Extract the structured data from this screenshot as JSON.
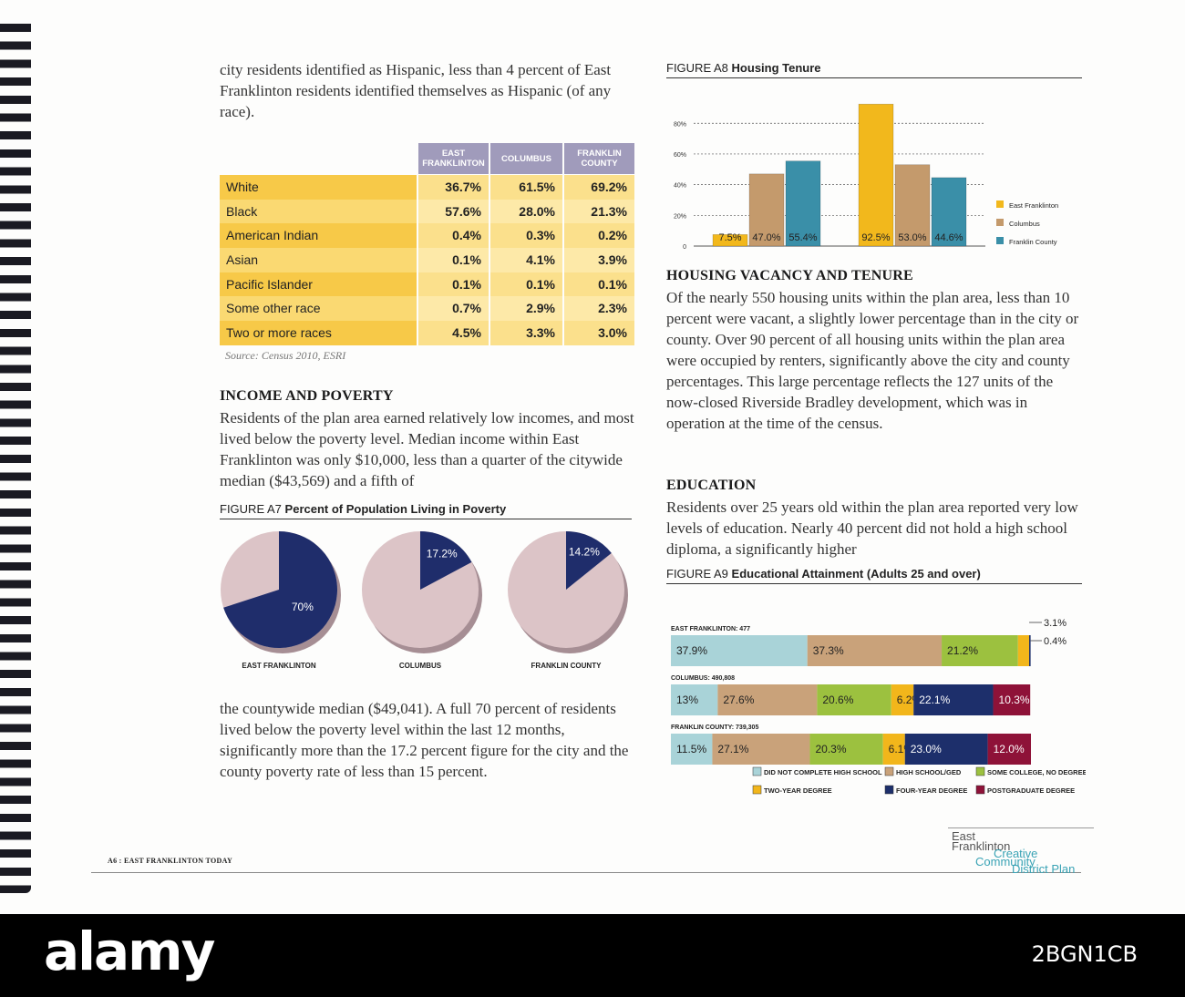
{
  "intro": "city residents identified as Hispanic, less than 4 percent of East Franklinton residents identified themselves as Hispanic (of any race).",
  "race_table": {
    "columns": [
      "EAST FRANKLINTON",
      "COLUMBUS",
      "FRANKLIN COUNTY"
    ],
    "rows": [
      {
        "label": "White",
        "cells": [
          "36.7%",
          "61.5%",
          "69.2%"
        ]
      },
      {
        "label": "Black",
        "cells": [
          "57.6%",
          "28.0%",
          "21.3%"
        ]
      },
      {
        "label": "American Indian",
        "cells": [
          "0.4%",
          "0.3%",
          "0.2%"
        ]
      },
      {
        "label": "Asian",
        "cells": [
          "0.1%",
          "4.1%",
          "3.9%"
        ]
      },
      {
        "label": "Pacific Islander",
        "cells": [
          "0.1%",
          "0.1%",
          "0.1%"
        ]
      },
      {
        "label": "Some other race",
        "cells": [
          "0.7%",
          "2.9%",
          "2.3%"
        ]
      },
      {
        "label": "Two or more races",
        "cells": [
          "4.5%",
          "3.3%",
          "3.0%"
        ]
      }
    ],
    "source": "Source: Census 2010, ESRI"
  },
  "income": {
    "heading": "INCOME AND POVERTY",
    "text": "Residents of the plan area earned relatively low incomes, and most lived below the poverty level. Median income within East Franklinton was only $10,000, less than a quarter of the citywide median ($43,569) and a fifth of"
  },
  "figure_a7": {
    "number": "FIGURE A7",
    "title": "Percent of Population Living in Poverty",
    "type": "pie",
    "color": "#1f2d6b",
    "rest_color": "#dcc4c7",
    "pies": [
      {
        "name": "EAST FRANKLINTON",
        "value": 70,
        "value_label": "70%"
      },
      {
        "name": "COLUMBUS",
        "value": 17.2,
        "value_label": "17.2%"
      },
      {
        "name": "FRANKLIN COUNTY",
        "value": 14.2,
        "value_label": "14.2%"
      }
    ]
  },
  "poverty_text": "the countywide median ($49,041). A full 70 percent of residents lived below the poverty level within the last 12 months, significantly more than the 17.2 percent figure for the city and the county poverty rate of less than 15 percent.",
  "figure_a8": {
    "number": "FIGURE A8",
    "title": "Housing Tenure",
    "type": "bar",
    "categories": [
      null,
      null
    ],
    "series": [
      {
        "name": "East Franklinton",
        "color": "#f2b81c",
        "values": [
          7.5,
          92.5
        ],
        "value_labels": [
          "7.5%",
          "92.5%"
        ]
      },
      {
        "name": "Columbus",
        "color": "#c49a6c",
        "values": [
          47.0,
          53.0
        ],
        "value_labels": [
          "47.0%",
          "53.0%"
        ]
      },
      {
        "name": "Franklin County",
        "color": "#3a8fa8",
        "values": [
          55.4,
          44.6
        ],
        "value_labels": [
          "55.4%",
          "44.6%"
        ]
      }
    ],
    "ylim": [
      0,
      95
    ],
    "yticks": [
      0,
      {
        "value": 20,
        "label": "20%"
      },
      {
        "value": 40,
        "label": "40%"
      },
      {
        "value": 60,
        "label": "60%"
      },
      {
        "value": 80,
        "label": "80%"
      }
    ],
    "grid": true,
    "legend": "right"
  },
  "housing": {
    "heading": "HOUSING VACANCY AND TENURE",
    "text": "Of the nearly 550 housing units within the plan area, less than 10 percent were vacant, a slightly lower percentage than in the city or county. Over 90 percent of all housing units within the plan area were occupied by renters, significantly above the city and county percentages. This large percentage reflects the 127 units of the now-closed Riverside Bradley development, which was in operation at the time of the census."
  },
  "education": {
    "heading": "EDUCATION",
    "text": "Residents over 25 years old within the plan area reported very low levels of education. Nearly 40 percent did not hold a high school diploma, a significantly higher"
  },
  "figure_a9": {
    "number": "FIGURE A9",
    "title": "Educational Attainment (Adults 25 and over)",
    "type": "stacked-bar",
    "categories": [
      "EAST FRANKLINTON: 477",
      "COLUMBUS: 490,808",
      "FRANKLIN COUNTY: 739,305"
    ],
    "xlim": [
      0,
      100
    ],
    "series": [
      {
        "name": "DID NOT COMPLETE HIGH SCHOOL",
        "color": "#a9d3d8",
        "values": [
          37.9,
          13,
          11.5
        ],
        "value_labels": [
          "37.9%",
          "13%",
          "11.5%"
        ]
      },
      {
        "name": "HIGH SCHOOL/GED",
        "color": "#c9a27a",
        "values": [
          37.3,
          27.6,
          27.1
        ],
        "value_labels": [
          "37.3%",
          "27.6%",
          "27.1%"
        ]
      },
      {
        "name": "SOME COLLEGE, NO DEGREE",
        "color": "#9cc13f",
        "values": [
          21.2,
          20.6,
          20.3
        ],
        "value_labels": [
          "21.2%",
          "20.6%",
          "20.3%"
        ]
      },
      {
        "name": "TWO-YEAR DEGREE",
        "color": "#f2b61b",
        "values": [
          3.1,
          6.2,
          6.1
        ],
        "value_labels": [
          "3.1%",
          "6.2%",
          "6.1%"
        ]
      },
      {
        "name": "FOUR-YEAR DEGREE",
        "color": "#1d2f6b",
        "values": [
          0.4,
          22.1,
          23.0
        ],
        "value_labels": [
          "0.4%",
          "22.1%",
          "23.0%"
        ]
      },
      {
        "name": "POSTGRADUATE DEGREE",
        "color": "#8e1238",
        "values": [
          0,
          10.3,
          12.0
        ],
        "value_labels": [
          null,
          "10.3%",
          "12.0%"
        ]
      }
    ]
  },
  "footer": {
    "page": "A6 : EAST FRANKLINTON TODAY",
    "logo": [
      "East",
      "Franklinton",
      "Creative",
      "Community",
      "District Plan"
    ]
  },
  "watermark": {
    "brand": "alamy",
    "image_id": "2BGN1CB"
  }
}
